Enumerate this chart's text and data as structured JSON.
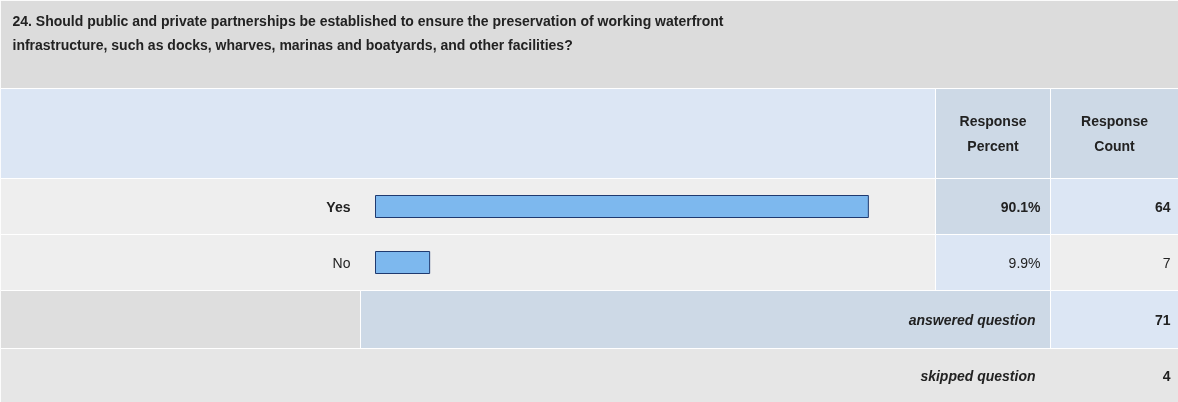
{
  "chart_data": {
    "type": "bar",
    "orientation": "horizontal",
    "title": "24. Should public and private partnerships be established to ensure the preservation of working waterfront infrastructure, such as docks, wharves, marinas and boatyards, and other facilities?",
    "categories": [
      "Yes",
      "No"
    ],
    "series": [
      {
        "name": "Response Percent",
        "color": "#7db8ee",
        "values": [
          90.1,
          9.9
        ],
        "value_labels": [
          "90.1%",
          "9.9%"
        ]
      }
    ],
    "annotations": [
      "Response Count",
      "64",
      "7",
      "answered question",
      "71",
      "skipped question",
      "4"
    ]
  }
}
